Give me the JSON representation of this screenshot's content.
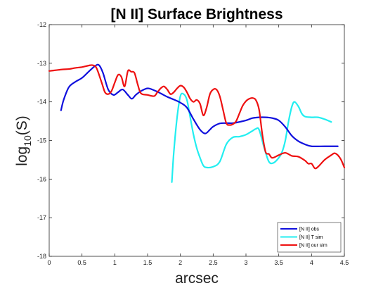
{
  "chart_data": {
    "type": "line",
    "title": "[N II] Surface Brightness",
    "xlabel": "arcsec",
    "ylabel_base": "log",
    "ylabel_sub": "10",
    "ylabel_rest": "(S)",
    "xlim": [
      0,
      4.5
    ],
    "ylim": [
      -18,
      -12
    ],
    "xticks": [
      "0",
      "0.5",
      "1",
      "1.5",
      "2",
      "2.5",
      "3",
      "3.5",
      "4",
      "4.5"
    ],
    "yticks": [
      "-12",
      "-13",
      "-14",
      "-15",
      "-16",
      "-17",
      "-18"
    ],
    "grid": false,
    "legend_position": "bottom-right",
    "series": [
      {
        "name": "[N II] obs",
        "color": "#1010dd",
        "x": [
          0.18,
          0.22,
          0.3,
          0.4,
          0.5,
          0.6,
          0.7,
          0.76,
          0.82,
          0.9,
          0.98,
          1.05,
          1.12,
          1.2,
          1.26,
          1.32,
          1.4,
          1.5,
          1.6,
          1.7,
          1.8,
          1.9,
          2.0,
          2.1,
          2.2,
          2.3,
          2.38,
          2.45,
          2.5,
          2.6,
          2.7,
          2.8,
          2.9,
          3.0,
          3.1,
          3.2,
          3.3,
          3.4,
          3.5,
          3.6,
          3.7,
          3.8,
          3.9,
          4.0,
          4.2,
          4.4
        ],
        "y": [
          -14.22,
          -13.95,
          -13.62,
          -13.48,
          -13.38,
          -13.22,
          -13.07,
          -13.05,
          -13.25,
          -13.68,
          -13.82,
          -13.75,
          -13.68,
          -13.82,
          -13.92,
          -13.82,
          -13.72,
          -13.65,
          -13.7,
          -13.78,
          -13.87,
          -13.94,
          -14.02,
          -14.15,
          -14.45,
          -14.72,
          -14.82,
          -14.72,
          -14.64,
          -14.56,
          -14.55,
          -14.55,
          -14.52,
          -14.48,
          -14.42,
          -14.4,
          -14.4,
          -14.42,
          -14.48,
          -14.65,
          -14.88,
          -15.02,
          -15.1,
          -15.15,
          -15.15,
          -15.15
        ]
      },
      {
        "name": "[N II] T sim",
        "color": "#22eef0",
        "x": [
          1.87,
          1.9,
          1.95,
          2.0,
          2.05,
          2.1,
          2.15,
          2.2,
          2.25,
          2.3,
          2.35,
          2.4,
          2.5,
          2.6,
          2.7,
          2.8,
          2.9,
          3.0,
          3.1,
          3.15,
          3.2,
          3.28,
          3.35,
          3.42,
          3.5,
          3.55,
          3.6,
          3.65,
          3.7,
          3.74,
          3.8,
          3.85,
          3.9,
          4.0,
          4.1,
          4.2,
          4.3
        ],
        "y": [
          -16.08,
          -15.3,
          -14.4,
          -13.85,
          -13.8,
          -13.95,
          -14.4,
          -14.85,
          -15.2,
          -15.45,
          -15.65,
          -15.7,
          -15.68,
          -15.55,
          -15.1,
          -14.92,
          -14.9,
          -14.85,
          -14.75,
          -14.7,
          -14.72,
          -15.2,
          -15.55,
          -15.58,
          -15.45,
          -15.3,
          -15.0,
          -14.5,
          -14.12,
          -14.0,
          -14.12,
          -14.3,
          -14.38,
          -14.4,
          -14.4,
          -14.45,
          -14.52
        ]
      },
      {
        "name": "[N II] our sim",
        "color": "#ee1111",
        "x": [
          0,
          0.1,
          0.2,
          0.3,
          0.4,
          0.5,
          0.6,
          0.66,
          0.72,
          0.8,
          0.85,
          0.9,
          0.95,
          1.0,
          1.05,
          1.1,
          1.15,
          1.2,
          1.25,
          1.3,
          1.35,
          1.4,
          1.5,
          1.6,
          1.65,
          1.7,
          1.75,
          1.8,
          1.85,
          1.9,
          1.95,
          2.0,
          2.05,
          2.1,
          2.15,
          2.2,
          2.25,
          2.3,
          2.35,
          2.4,
          2.45,
          2.5,
          2.55,
          2.6,
          2.65,
          2.7,
          2.75,
          2.8,
          2.85,
          2.9,
          2.95,
          3.0,
          3.05,
          3.1,
          3.15,
          3.2,
          3.25,
          3.3,
          3.35,
          3.4,
          3.5,
          3.6,
          3.7,
          3.8,
          3.9,
          3.95,
          4.0,
          4.05,
          4.1,
          4.2,
          4.3,
          4.35,
          4.4,
          4.45,
          4.5
        ],
        "y": [
          -13.2,
          -13.18,
          -13.16,
          -13.15,
          -13.12,
          -13.1,
          -13.06,
          -13.05,
          -13.12,
          -13.5,
          -13.75,
          -13.8,
          -13.72,
          -13.5,
          -13.3,
          -13.35,
          -13.6,
          -13.2,
          -13.22,
          -13.25,
          -13.55,
          -13.78,
          -13.82,
          -13.85,
          -13.75,
          -13.65,
          -13.6,
          -13.68,
          -13.8,
          -13.75,
          -13.65,
          -13.58,
          -13.62,
          -13.75,
          -13.92,
          -14.0,
          -13.95,
          -14.05,
          -14.35,
          -14.15,
          -13.8,
          -13.68,
          -13.68,
          -13.85,
          -14.2,
          -14.55,
          -14.6,
          -14.58,
          -14.5,
          -14.3,
          -14.1,
          -13.98,
          -13.92,
          -13.9,
          -13.95,
          -14.2,
          -14.85,
          -15.3,
          -15.35,
          -15.45,
          -15.38,
          -15.32,
          -15.4,
          -15.42,
          -15.52,
          -15.6,
          -15.6,
          -15.72,
          -15.68,
          -15.5,
          -15.38,
          -15.33,
          -15.38,
          -15.5,
          -15.7
        ]
      }
    ]
  }
}
